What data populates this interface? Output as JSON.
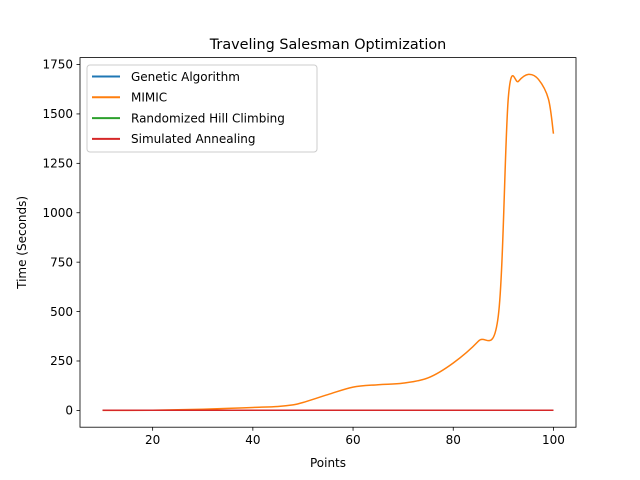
{
  "chart_data": {
    "type": "line",
    "title": "Traveling Salesman Optimization",
    "xlabel": "Points",
    "ylabel": "Time (Seconds)",
    "xlim": [
      5.5,
      104.5
    ],
    "ylim": [
      -85,
      1785
    ],
    "x_ticks": [
      20,
      40,
      60,
      80,
      100
    ],
    "y_ticks": [
      0,
      250,
      500,
      750,
      1000,
      1250,
      1500,
      1750
    ],
    "grid": false,
    "legend_position": "top-left",
    "x": [
      10,
      15,
      20,
      25,
      30,
      35,
      40,
      45,
      48,
      50,
      55,
      60,
      65,
      70,
      75,
      80,
      85,
      89,
      91,
      93,
      95,
      97,
      99,
      100
    ],
    "series": [
      {
        "name": "Genetic Algorithm",
        "color": "#1f77b4",
        "values": [
          1,
          1,
          1,
          1,
          1,
          1,
          1,
          1,
          1,
          1,
          1,
          1,
          1,
          1,
          1,
          1,
          1,
          1,
          1,
          1,
          1,
          1,
          1,
          1
        ]
      },
      {
        "name": "MIMIC",
        "color": "#ff7f0e",
        "values": [
          0,
          0,
          1,
          3,
          6,
          10,
          15,
          20,
          28,
          40,
          80,
          118,
          130,
          138,
          165,
          240,
          350,
          480,
          1585,
          1665,
          1700,
          1675,
          1575,
          1400
        ]
      },
      {
        "name": "Randomized Hill Climbing",
        "color": "#2ca02c",
        "values": [
          1,
          1,
          1,
          1,
          1,
          1,
          1,
          1,
          1,
          1,
          1,
          1,
          1,
          1,
          1,
          1,
          1,
          1,
          1,
          1,
          1,
          1,
          1,
          1
        ]
      },
      {
        "name": "Simulated Annealing",
        "color": "#d62728",
        "values": [
          1,
          1,
          1,
          1,
          1,
          1,
          1,
          1,
          1,
          1,
          1,
          1,
          1,
          1,
          1,
          1,
          1,
          1,
          1,
          1,
          1,
          1,
          1,
          1
        ]
      }
    ]
  }
}
